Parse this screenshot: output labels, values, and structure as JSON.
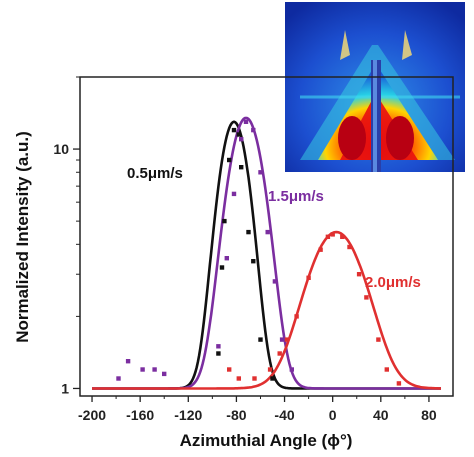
{
  "chart_data": {
    "type": "scatter",
    "title": "",
    "xlabel": "Azimuthial Angle (ϕ°)",
    "ylabel": "Normalized Intensity (a.u.)",
    "xlim": [
      -210,
      100
    ],
    "ylim": [
      0.93,
      20
    ],
    "yscale": "log",
    "x_ticks": [
      -200,
      -160,
      -120,
      -80,
      -40,
      0,
      40,
      80
    ],
    "y_ticks": [
      1,
      10
    ],
    "grid": false,
    "inset": "2D scattering pattern image (top-right)",
    "series": [
      {
        "name": "0.5μm/s",
        "color": "#111111",
        "fit": {
          "amplitude": 12,
          "center": -82,
          "sigma": 11,
          "baseline": 1
        },
        "points": [
          [
            -95,
            1.4
          ],
          [
            -92,
            3.2
          ],
          [
            -90,
            5.0
          ],
          [
            -86,
            9.0
          ],
          [
            -82,
            12.0
          ],
          [
            -78,
            11.5
          ],
          [
            -76,
            8.4
          ],
          [
            -70,
            4.5
          ],
          [
            -66,
            3.4
          ],
          [
            -60,
            1.6
          ],
          [
            -50,
            1.1
          ]
        ]
      },
      {
        "name": "1.5μm/s",
        "color": "#7b2ea0",
        "fit": {
          "amplitude": 12.5,
          "center": -72,
          "sigma": 13,
          "baseline": 1
        },
        "points": [
          [
            -178,
            1.1
          ],
          [
            -170,
            1.3
          ],
          [
            -158,
            1.2
          ],
          [
            -148,
            1.2
          ],
          [
            -140,
            1.15
          ],
          [
            -95,
            1.5
          ],
          [
            -88,
            3.5
          ],
          [
            -82,
            6.5
          ],
          [
            -76,
            11.0
          ],
          [
            -72,
            13.0
          ],
          [
            -66,
            12.0
          ],
          [
            -60,
            8.0
          ],
          [
            -54,
            4.5
          ],
          [
            -48,
            2.8
          ],
          [
            -42,
            1.6
          ],
          [
            -34,
            1.2
          ]
        ]
      },
      {
        "name": "2.0μm/s",
        "color": "#e03030",
        "fit": {
          "amplitude": 3.5,
          "center": 3,
          "sigma": 21,
          "baseline": 1
        },
        "points": [
          [
            -86,
            1.2
          ],
          [
            -78,
            1.1
          ],
          [
            -65,
            1.1
          ],
          [
            -52,
            1.2
          ],
          [
            -44,
            1.4
          ],
          [
            -38,
            1.6
          ],
          [
            -30,
            2.0
          ],
          [
            -20,
            2.9
          ],
          [
            -10,
            3.8
          ],
          [
            -4,
            4.3
          ],
          [
            0,
            4.4
          ],
          [
            8,
            4.3
          ],
          [
            14,
            3.9
          ],
          [
            22,
            3.0
          ],
          [
            28,
            2.4
          ],
          [
            38,
            1.6
          ],
          [
            45,
            1.2
          ],
          [
            55,
            1.05
          ]
        ]
      }
    ]
  }
}
